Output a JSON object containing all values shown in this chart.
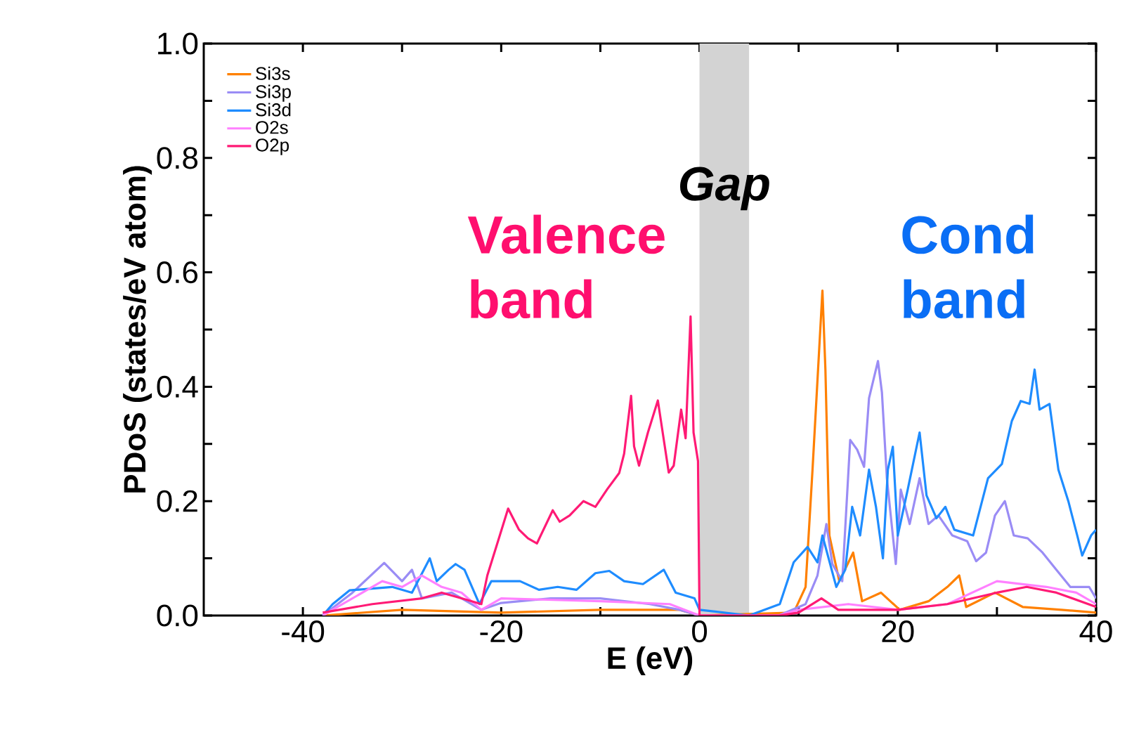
{
  "chart_data": {
    "type": "line",
    "xlabel": "E (eV)",
    "ylabel": "PDoS (states/eV atom)",
    "xlim": [
      -50,
      40
    ],
    "ylim": [
      0,
      1
    ],
    "xticks": [
      -40,
      {
        "value": -30,
        "label": null
      },
      -20,
      {
        "value": -10,
        "label": null
      },
      0,
      {
        "value": 10,
        "label": null
      },
      20,
      {
        "value": 30,
        "label": null
      },
      40
    ],
    "yticks": [
      {
        "value": 0,
        "label": "0.0"
      },
      {
        "value": 0.1,
        "label": null
      },
      0.2,
      {
        "value": 0.3,
        "label": null
      },
      0.4,
      {
        "value": 0.5,
        "label": null
      },
      0.6,
      {
        "value": 0.7,
        "label": null
      },
      0.8,
      {
        "value": 0.9,
        "label": null
      },
      {
        "value": 1,
        "label": "1.0"
      }
    ],
    "legend": "top left",
    "bands": [
      {
        "axis": "x",
        "from": 0,
        "to": 5,
        "label": "Gap",
        "color": "#d3d3d3"
      }
    ],
    "annotations": [
      "Valence band",
      "Cond band"
    ],
    "series": [
      {
        "name": "Si3s",
        "color": "#ff8000",
        "x": [
          -38,
          -30,
          -20,
          -10,
          -2,
          0,
          9.5,
          10.7,
          11.4,
          12.4,
          12.7,
          13.1,
          14.1,
          15.5,
          16.4,
          18.3,
          20.2,
          23.1,
          25,
          26.2,
          26.9,
          29.8,
          32.6,
          36.5,
          40
        ],
        "values": [
          0,
          0.01,
          0.005,
          0.01,
          0.01,
          0,
          0.005,
          0.05,
          0.255,
          0.568,
          0.43,
          0.14,
          0.06,
          0.11,
          0.025,
          0.04,
          0.01,
          0.025,
          0.05,
          0.07,
          0.015,
          0.04,
          0.015,
          0.01,
          0.005
        ]
      },
      {
        "name": "Si3p",
        "color": "#9a8cf5",
        "x": [
          -38,
          -35,
          -31.8,
          -30,
          -29,
          -28,
          -25,
          -22,
          -20,
          -15,
          -10,
          -5,
          -2,
          0,
          8,
          10.7,
          11.9,
          12.8,
          13.4,
          14.4,
          15.2,
          15.9,
          16.6,
          17.1,
          18,
          18.4,
          18.9,
          19.8,
          20.3,
          21.2,
          22.2,
          23.1,
          24.1,
          25.5,
          27,
          27.9,
          28.9,
          29.8,
          30.8,
          31.7,
          33.1,
          34.6,
          36,
          37.4,
          39.3,
          40
        ],
        "values": [
          0,
          0.04,
          0.092,
          0.06,
          0.08,
          0.03,
          0.04,
          0.01,
          0.022,
          0.03,
          0.03,
          0.02,
          0.01,
          0,
          0,
          0.02,
          0.07,
          0.16,
          0.09,
          0.06,
          0.307,
          0.29,
          0.26,
          0.38,
          0.445,
          0.39,
          0.24,
          0.09,
          0.22,
          0.16,
          0.24,
          0.16,
          0.175,
          0.14,
          0.13,
          0.095,
          0.11,
          0.175,
          0.2,
          0.14,
          0.135,
          0.11,
          0.08,
          0.05,
          0.05,
          0.03
        ]
      },
      {
        "name": "Si3d",
        "color": "#1e8cff",
        "x": [
          -38,
          -37,
          -35.3,
          -31,
          -29,
          -27.2,
          -26.5,
          -25.3,
          -24.6,
          -23.7,
          -22.2,
          -21,
          -18.1,
          -16.2,
          -14.3,
          -12.4,
          -10.5,
          -9.1,
          -7.6,
          -5.7,
          -3.6,
          -2.4,
          -0.5,
          0,
          5,
          8.1,
          9.5,
          10.9,
          11.9,
          12.4,
          13.8,
          14.7,
          15.4,
          16.2,
          17.1,
          17.8,
          18.5,
          19,
          19.5,
          20,
          21,
          22.2,
          22.9,
          23.9,
          24.8,
          25.7,
          27.6,
          29.1,
          30.5,
          31.5,
          32.4,
          33.3,
          33.8,
          34.3,
          35.3,
          36.2,
          37.2,
          38.1,
          38.6,
          39.5,
          40
        ],
        "values": [
          0,
          0.02,
          0.044,
          0.05,
          0.04,
          0.1,
          0.06,
          0.08,
          0.09,
          0.08,
          0.02,
          0.06,
          0.06,
          0.045,
          0.05,
          0.045,
          0.074,
          0.078,
          0.06,
          0.055,
          0.08,
          0.04,
          0.03,
          0.01,
          0,
          0.02,
          0.093,
          0.12,
          0.093,
          0.14,
          0.05,
          0.08,
          0.19,
          0.14,
          0.255,
          0.19,
          0.1,
          0.255,
          0.295,
          0.14,
          0.22,
          0.32,
          0.21,
          0.17,
          0.19,
          0.15,
          0.14,
          0.24,
          0.265,
          0.34,
          0.375,
          0.37,
          0.43,
          0.36,
          0.37,
          0.255,
          0.2,
          0.14,
          0.105,
          0.14,
          0.15
        ]
      },
      {
        "name": "O2s",
        "color": "#ff80ff",
        "x": [
          -38,
          -35,
          -32,
          -30,
          -28,
          -26,
          -24,
          -22,
          -20,
          -10,
          -3,
          0,
          8,
          10,
          15,
          20,
          25,
          30,
          35,
          38,
          40
        ],
        "values": [
          0,
          0.03,
          0.06,
          0.05,
          0.07,
          0.05,
          0.04,
          0.01,
          0.03,
          0.025,
          0.02,
          0,
          0,
          0.01,
          0.02,
          0.01,
          0.02,
          0.06,
          0.05,
          0.04,
          0.02
        ]
      },
      {
        "name": "O2p",
        "color": "#ff1a75",
        "x": [
          -38,
          -33,
          -28,
          -26,
          -24,
          -22,
          -21.4,
          -20.5,
          -19.3,
          -18.2,
          -17.3,
          -16.4,
          -14.8,
          -14.1,
          -13.1,
          -11.7,
          -10.5,
          -9.3,
          -8.1,
          -7.6,
          -6.9,
          -6.6,
          -6.1,
          -5.2,
          -4.2,
          -3.8,
          -3.1,
          -2.6,
          -1.85,
          -1.4,
          -0.9,
          -0.6,
          -0.15,
          0,
          8,
          10,
          12.3,
          14,
          20,
          25,
          30,
          33,
          36,
          40
        ],
        "values": [
          0.005,
          0.02,
          0.03,
          0.04,
          0.03,
          0.02,
          0.07,
          0.12,
          0.187,
          0.15,
          0.135,
          0.126,
          0.184,
          0.164,
          0.175,
          0.2,
          0.19,
          0.221,
          0.249,
          0.283,
          0.384,
          0.296,
          0.262,
          0.32,
          0.376,
          0.33,
          0.25,
          0.262,
          0.36,
          0.31,
          0.523,
          0.32,
          0.27,
          0,
          0,
          0.005,
          0.03,
          0.01,
          0.01,
          0.02,
          0.04,
          0.05,
          0.04,
          0.015
        ]
      }
    ]
  }
}
